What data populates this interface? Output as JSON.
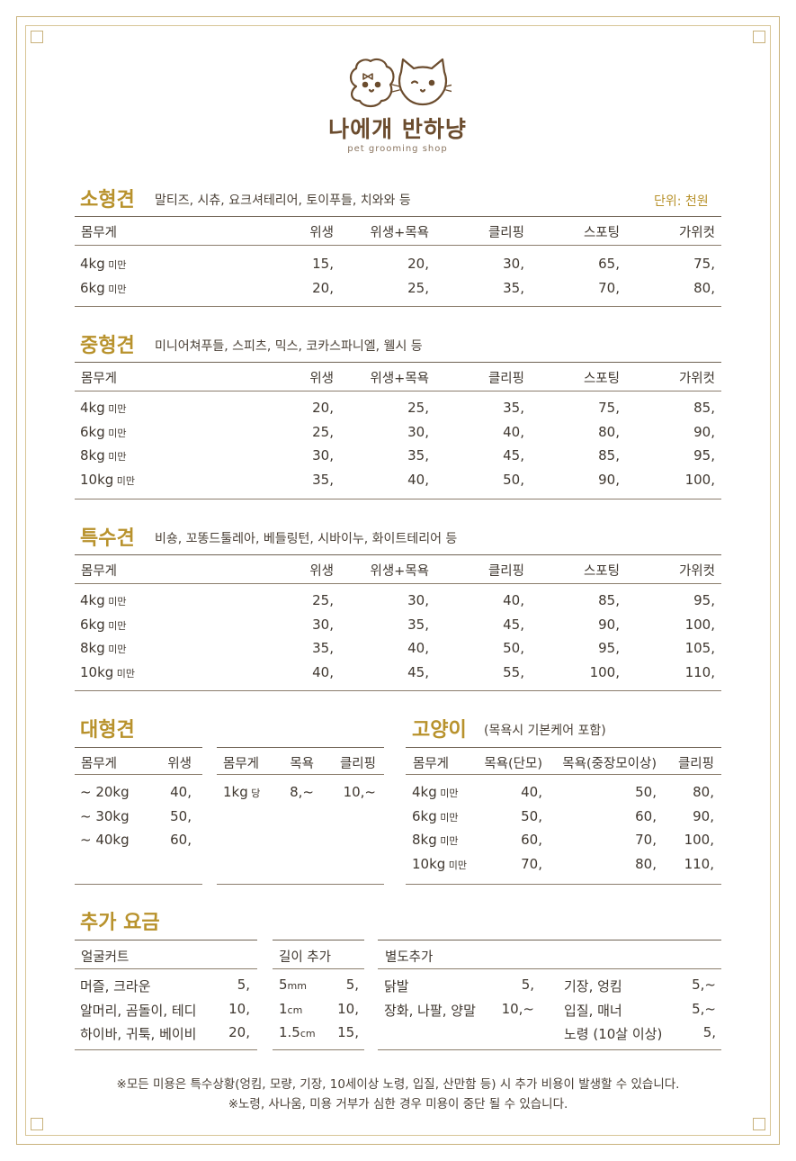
{
  "brand": {
    "name": "나에개 반하냥",
    "tagline": "pet grooming shop"
  },
  "unit_label": "단위: 천원",
  "headers": [
    "몸무게",
    "위생",
    "위생+목욕",
    "클리핑",
    "스포팅",
    "가위컷"
  ],
  "small": {
    "title": "소형견",
    "breeds": "말티즈, 시츄, 요크셔테리어, 토이푸들, 치와와 등",
    "rows": [
      {
        "w": "4kg",
        "s": "미만",
        "v": [
          "15,",
          "20,",
          "30,",
          "65,",
          "75,"
        ]
      },
      {
        "w": "6kg",
        "s": "미만",
        "v": [
          "20,",
          "25,",
          "35,",
          "70,",
          "80,"
        ]
      }
    ]
  },
  "medium": {
    "title": "중형견",
    "breeds": "미니어쳐푸들, 스피츠, 믹스, 코카스파니엘, 웰시 등",
    "rows": [
      {
        "w": "4kg",
        "s": "미만",
        "v": [
          "20,",
          "25,",
          "35,",
          "75,",
          "85,"
        ]
      },
      {
        "w": "6kg",
        "s": "미만",
        "v": [
          "25,",
          "30,",
          "40,",
          "80,",
          "90,"
        ]
      },
      {
        "w": "8kg",
        "s": "미만",
        "v": [
          "30,",
          "35,",
          "45,",
          "85,",
          "95,"
        ]
      },
      {
        "w": "10kg",
        "s": "미만",
        "v": [
          "35,",
          "40,",
          "50,",
          "90,",
          "100,"
        ]
      }
    ]
  },
  "special": {
    "title": "특수견",
    "breeds": "비숑, 꼬똥드툴레아, 베들링턴, 시바이누, 화이트테리어 등",
    "rows": [
      {
        "w": "4kg",
        "s": "미만",
        "v": [
          "25,",
          "30,",
          "40,",
          "85,",
          "95,"
        ]
      },
      {
        "w": "6kg",
        "s": "미만",
        "v": [
          "30,",
          "35,",
          "45,",
          "90,",
          "100,"
        ]
      },
      {
        "w": "8kg",
        "s": "미만",
        "v": [
          "35,",
          "40,",
          "50,",
          "95,",
          "105,"
        ]
      },
      {
        "w": "10kg",
        "s": "미만",
        "v": [
          "40,",
          "45,",
          "55,",
          "100,",
          "110,"
        ]
      }
    ]
  },
  "large": {
    "title": "대형견",
    "t1": {
      "headers": [
        "몸무게",
        "위생"
      ],
      "rows": [
        [
          "~ 20kg",
          "40,"
        ],
        [
          "~ 30kg",
          "50,"
        ],
        [
          "~ 40kg",
          "60,"
        ]
      ]
    },
    "t2": {
      "headers": [
        "몸무게",
        "목욕",
        "클리핑"
      ],
      "row": {
        "w": "1kg",
        "s": "당",
        "v": [
          "8,~",
          "10,~"
        ]
      }
    }
  },
  "cat": {
    "title": "고양이",
    "note": "(목욕시 기본케어 포함)",
    "headers": [
      "몸무게",
      "목욕(단모)",
      "목욕(중장모이상)",
      "클리핑"
    ],
    "rows": [
      {
        "w": "4kg",
        "s": "미만",
        "v": [
          "40,",
          "50,",
          "80,"
        ]
      },
      {
        "w": "6kg",
        "s": "미만",
        "v": [
          "50,",
          "60,",
          "90,"
        ]
      },
      {
        "w": "8kg",
        "s": "미만",
        "v": [
          "60,",
          "70,",
          "100,"
        ]
      },
      {
        "w": "10kg",
        "s": "미만",
        "v": [
          "70,",
          "80,",
          "110,"
        ]
      }
    ]
  },
  "extra": {
    "title": "추가 요금",
    "face": {
      "header": "얼굴커트",
      "rows": [
        [
          "머즐, 크라운",
          "5,"
        ],
        [
          "알머리, 곰돌이, 테디",
          "10,"
        ],
        [
          "하이바, 귀툭, 베이비",
          "20,"
        ]
      ]
    },
    "length": {
      "header": "길이 추가",
      "rows": [
        {
          "n": "5",
          "u": "mm",
          "v": "5,"
        },
        {
          "n": "1",
          "u": "cm",
          "v": "10,"
        },
        {
          "n": "1.5",
          "u": "cm",
          "v": "15,"
        }
      ]
    },
    "separate": {
      "header": "별도추가",
      "left": [
        [
          "닭발",
          "5,"
        ],
        [
          "장화, 나팔, 양말",
          "10,~"
        ]
      ],
      "right": [
        [
          "기장, 엉킴",
          "5,~"
        ],
        [
          "입질, 매너",
          "5,~"
        ],
        [
          "노령 (10살 이상)",
          "5,"
        ]
      ]
    }
  },
  "footnotes": [
    "※모든 미용은 특수상황(엉킴, 모량, 기장, 10세이상 노령, 입질, 산만함 등) 시 추가 비용이 발생할 수 있습니다.",
    "※노령, 사나움, 미용 거부가 심한 경우 미용이 중단 될 수 있습니다."
  ],
  "colors": {
    "gold": "#b8922c",
    "text": "#3f372f",
    "line": "#8b7d6c",
    "frame": "#c9b27c"
  }
}
